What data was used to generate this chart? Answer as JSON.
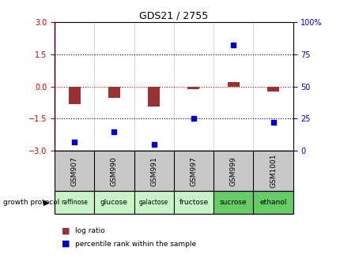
{
  "title": "GDS21 / 2755",
  "samples": [
    "GSM907",
    "GSM990",
    "GSM991",
    "GSM997",
    "GSM999",
    "GSM1001"
  ],
  "log_ratios": [
    -0.82,
    -0.52,
    -0.92,
    -0.12,
    0.22,
    -0.22
  ],
  "percentile_ranks": [
    7,
    15,
    5,
    25,
    82,
    22
  ],
  "growth_labels": [
    "raffinose",
    "glucose",
    "galactose",
    "fructose",
    "sucrose",
    "ethanol"
  ],
  "growth_colors": [
    "#c8f5c8",
    "#c8f5c8",
    "#c8f5c8",
    "#c8f5c8",
    "#66cc66",
    "#66cc66"
  ],
  "ylim_left": [
    -3,
    3
  ],
  "ylim_right": [
    0,
    100
  ],
  "hlines_black": [
    1.5,
    -1.5
  ],
  "hline_red": 0,
  "bar_color": "#993333",
  "dot_color": "#0000CC",
  "background_color": "#ffffff",
  "left_axis_color": "#cc0000",
  "right_axis_color": "#0000cc",
  "left_yticks": [
    -3,
    -1.5,
    0,
    1.5,
    3
  ],
  "right_yticks": [
    0,
    25,
    50,
    75,
    100
  ],
  "sample_box_color": "#c8c8c8",
  "bar_width": 0.3
}
